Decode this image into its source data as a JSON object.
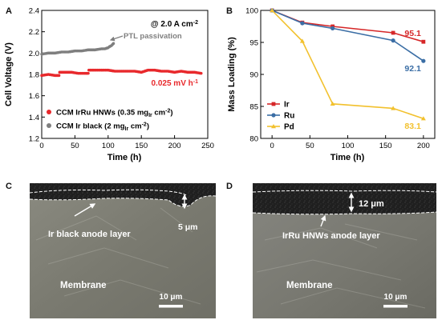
{
  "chart_data": [
    {
      "panel": "A",
      "type": "scatter",
      "xlabel": "Time (h)",
      "ylabel": "Cell Voltage (V)",
      "xlim": [
        0,
        250
      ],
      "ylim": [
        1.2,
        2.4
      ],
      "xticks": [
        0,
        50,
        100,
        150,
        200,
        250
      ],
      "yticks": [
        1.2,
        1.4,
        1.6,
        1.8,
        2.0,
        2.2,
        2.4
      ],
      "condition": "@ 2.0 A cm⁻²",
      "series": [
        {
          "name": "CCM IrRu HNWs (0.35 mgIr cm⁻²)",
          "color": "#e8292c",
          "x": [
            0,
            10,
            20,
            26,
            27,
            35,
            45,
            55,
            65,
            70,
            71,
            80,
            90,
            100,
            110,
            120,
            130,
            140,
            150,
            160,
            170,
            180,
            190,
            200,
            210,
            220,
            230,
            240
          ],
          "y": [
            1.79,
            1.8,
            1.79,
            1.79,
            1.82,
            1.82,
            1.82,
            1.81,
            1.81,
            1.81,
            1.84,
            1.84,
            1.84,
            1.84,
            1.83,
            1.83,
            1.83,
            1.83,
            1.82,
            1.84,
            1.84,
            1.83,
            1.83,
            1.82,
            1.83,
            1.82,
            1.82,
            1.81
          ],
          "annotation": "0.025 mV h⁻¹"
        },
        {
          "name": "CCM Ir black (2 mgIr cm⁻²)",
          "color": "#7f7f7f",
          "x": [
            0,
            10,
            20,
            30,
            40,
            50,
            60,
            70,
            80,
            90,
            95,
            100,
            102,
            105,
            108
          ],
          "y": [
            1.99,
            2.0,
            2.0,
            2.01,
            2.01,
            2.02,
            2.02,
            2.03,
            2.03,
            2.04,
            2.04,
            2.05,
            2.06,
            2.07,
            2.09
          ],
          "annotation": "PTL passivation"
        }
      ]
    },
    {
      "panel": "B",
      "type": "line",
      "xlabel": "Time (h)",
      "ylabel": "Mass Loading (%)",
      "xlim": [
        -15,
        215
      ],
      "ylim": [
        80,
        100
      ],
      "xticks": [
        0,
        50,
        100,
        150,
        200
      ],
      "yticks": [
        80,
        85,
        90,
        95,
        100
      ],
      "series": [
        {
          "name": "Ir",
          "color": "#d62728",
          "x": [
            0,
            40,
            80,
            160,
            200
          ],
          "y": [
            100,
            98.1,
            97.5,
            96.5,
            95.1
          ],
          "end_label": "95.1"
        },
        {
          "name": "Ru",
          "color": "#3b6ea5",
          "x": [
            0,
            40,
            80,
            160,
            200
          ],
          "y": [
            100,
            98.0,
            97.2,
            95.3,
            92.1
          ],
          "end_label": "92.1"
        },
        {
          "name": "Pd",
          "color": "#f2c12e",
          "x": [
            0,
            40,
            80,
            160,
            200
          ],
          "y": [
            100,
            95.2,
            85.4,
            84.7,
            83.1
          ],
          "end_label": "83.1"
        }
      ]
    }
  ],
  "panels": {
    "A": {
      "label": "A"
    },
    "B": {
      "label": "B"
    },
    "C": {
      "label": "C",
      "layer_label": "Ir black  anode layer",
      "thickness": "5 μm",
      "membrane_label": "Membrane",
      "scale_bar": "10 μm"
    },
    "D": {
      "label": "D",
      "layer_label": "IrRu HNWs anode layer",
      "thickness": "12 μm",
      "membrane_label": "Membrane",
      "scale_bar": "10 μm"
    }
  },
  "colors": {
    "sem_background": "#7e7e74",
    "sem_dark_layer": "#252525",
    "sem_outline": "#ffffff"
  }
}
